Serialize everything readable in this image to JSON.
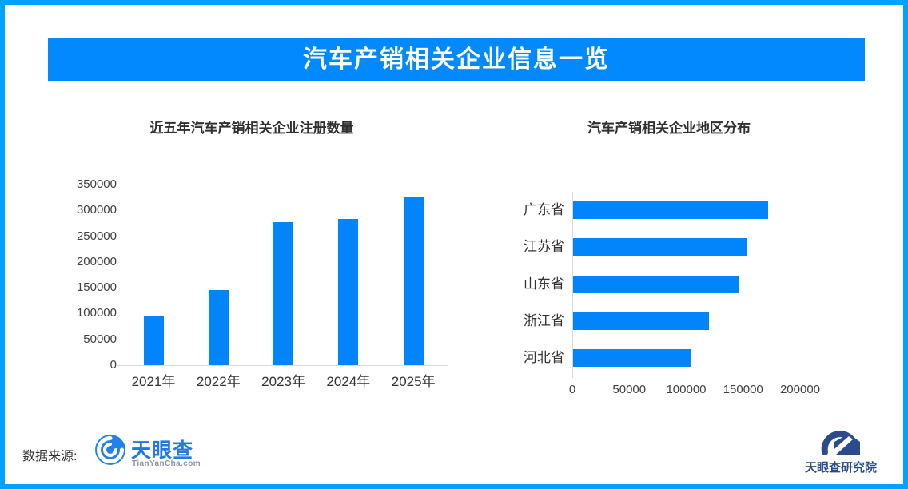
{
  "header": {
    "title": "汽车产销相关企业信息一览"
  },
  "colors": {
    "frame_border": "#00A2FF",
    "banner_background": "#0289FD",
    "bar_fill": "#0285FA",
    "axis_line": "#D9D9D9",
    "tick_text": "#404040",
    "title_text": "#303030",
    "tianyancha_blue": "#2478E4",
    "institute_blue": "#2B4C8C"
  },
  "chart_data": [
    {
      "type": "bar",
      "orientation": "vertical",
      "title": "近五年汽车产销相关企业注册数量",
      "categories": [
        "2021年",
        "2022年",
        "2023年",
        "2024年",
        "2025年"
      ],
      "values": [
        95000,
        146000,
        277000,
        284000,
        325000
      ],
      "ylabel": "",
      "xlabel": "",
      "ylim": [
        0,
        350000
      ],
      "yticks": [
        0,
        50000,
        100000,
        150000,
        200000,
        250000,
        300000,
        350000
      ],
      "grid": false,
      "legend": "none"
    },
    {
      "type": "bar",
      "orientation": "horizontal",
      "title": "汽车产销相关企业地区分布",
      "categories": [
        "广东省",
        "江苏省",
        "山东省",
        "浙江省",
        "河北省"
      ],
      "values": [
        171000,
        153000,
        146000,
        119000,
        104000
      ],
      "ylabel": "",
      "xlabel": "",
      "xlim": [
        0,
        200000
      ],
      "xticks": [
        0,
        50000,
        100000,
        150000,
        200000
      ],
      "grid": false,
      "legend": "none"
    }
  ],
  "footer": {
    "source_label": "数据来源:",
    "tianyancha_logo": {
      "name": "天眼查",
      "domain": "TianYanCha.com"
    },
    "institute_logo": {
      "name": "天眼查研究院"
    }
  }
}
